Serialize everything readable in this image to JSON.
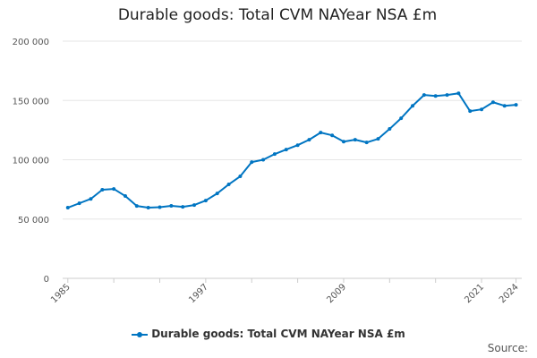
{
  "chart_data": {
    "type": "line",
    "title": "Durable goods: Total CVM NAYear NSA £m",
    "xlabel": "",
    "ylabel": "",
    "ylim": [
      0,
      200000
    ],
    "yticks": [
      0,
      50000,
      100000,
      150000,
      200000
    ],
    "ytick_labels": [
      "0",
      "50 000",
      "100 000",
      "150 000",
      "200 000"
    ],
    "xtick_labels": [
      "1985",
      "1997",
      "2009",
      "2021",
      "2024"
    ],
    "grid": true,
    "legend_position": "bottom",
    "color": "#0075c2",
    "x": [
      1985,
      1986,
      1987,
      1988,
      1989,
      1990,
      1991,
      1992,
      1993,
      1994,
      1995,
      1996,
      1997,
      1998,
      1999,
      2000,
      2001,
      2002,
      2003,
      2004,
      2005,
      2006,
      2007,
      2008,
      2009,
      2010,
      2011,
      2012,
      2013,
      2014,
      2015,
      2016,
      2017,
      2018,
      2019,
      2020,
      2021,
      2022,
      2023,
      2024
    ],
    "series": [
      {
        "name": "Durable goods: Total CVM NAYear NSA £m",
        "values": [
          59600,
          63300,
          67000,
          74700,
          75400,
          69400,
          61000,
          59600,
          60000,
          61100,
          60300,
          61800,
          65600,
          71600,
          79200,
          86000,
          98000,
          100000,
          104800,
          108600,
          112300,
          116900,
          122900,
          120600,
          115300,
          116900,
          114600,
          117600,
          126000,
          135000,
          145500,
          154600,
          153800,
          154600,
          156000,
          141000,
          142500,
          148500,
          145500,
          146300
        ]
      }
    ]
  },
  "source_label": "Source:"
}
